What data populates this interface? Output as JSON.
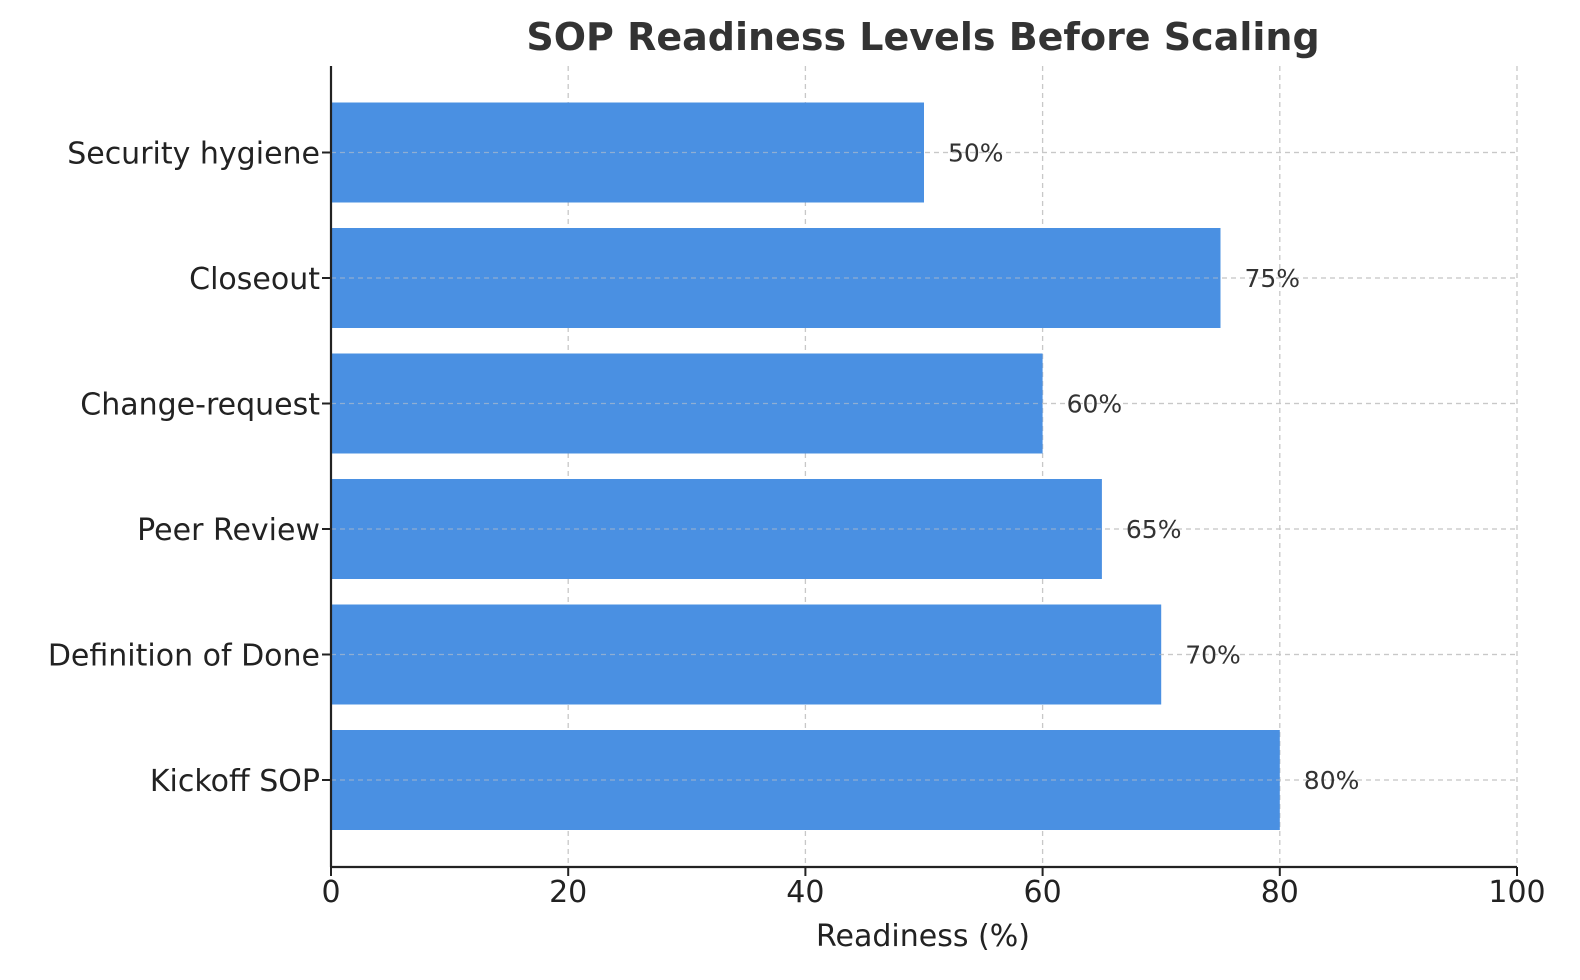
{
  "chart_data": {
    "type": "bar",
    "orientation": "horizontal",
    "title": "SOP Readiness Levels Before Scaling",
    "xlabel": "Readiness (%)",
    "ylabel": "",
    "categories": [
      "Kickoff SOP",
      "Definition of Done",
      "Peer Review",
      "Change-request",
      "Closeout",
      "Security hygiene"
    ],
    "values": [
      80,
      70,
      65,
      60,
      75,
      50
    ],
    "data_labels": [
      "80%",
      "70%",
      "65%",
      "60%",
      "75%",
      "50%"
    ],
    "xlim": [
      0,
      100
    ],
    "xticks": [
      0,
      20,
      40,
      60,
      80,
      100
    ],
    "xtick_labels": [
      "0",
      "20",
      "40",
      "60",
      "80",
      "100"
    ],
    "grid": true,
    "bar_color": "#4a90e2"
  }
}
